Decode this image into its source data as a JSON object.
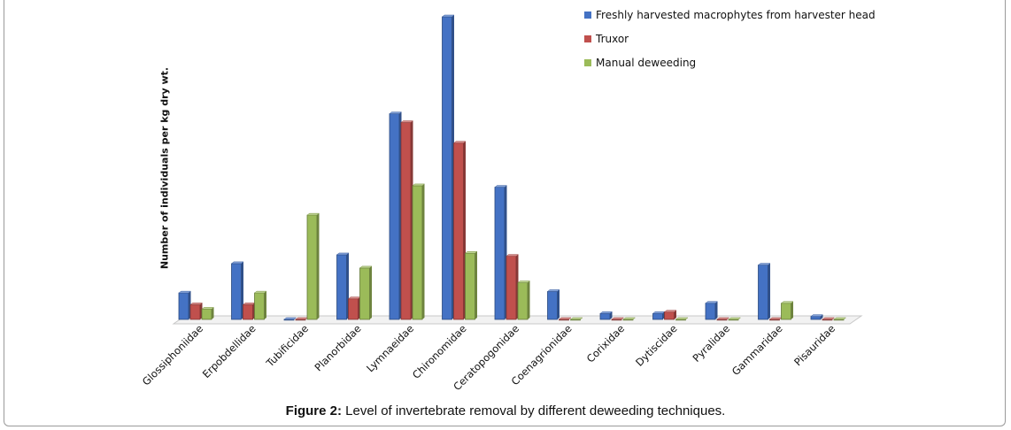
{
  "chart_data": {
    "type": "bar",
    "ylabel": "Number of individuals per kg dry wt.",
    "categories": [
      "Glossiphoniidae",
      "Erpobdellidae",
      "Tubificidae",
      "Planorbidae",
      "Lymnaeidae",
      "Chironomidae",
      "Ceratopogonidae",
      "Coenagrionidae",
      "Corixidae",
      "Dytiscidae",
      "Pyralidae",
      "Gammaridae",
      "Pisauridae"
    ],
    "series": [
      {
        "name": "Freshly harvested macrophytes from harvester head",
        "color": "#4472c4",
        "values": [
          9,
          19,
          0,
          22,
          70,
          103,
          45,
          9.5,
          2,
          2,
          5.5,
          18.5,
          1
        ]
      },
      {
        "name": "Truxor",
        "color": "#c0504d",
        "values": [
          5,
          5,
          0,
          7,
          67,
          60,
          21.5,
          0,
          0,
          2.5,
          0,
          0,
          0
        ]
      },
      {
        "name": "Manual deweeding",
        "color": "#9bbb59",
        "values": [
          3.5,
          9,
          35.5,
          17.5,
          45.5,
          22.5,
          12.5,
          0,
          0,
          0,
          0,
          5.5,
          0
        ]
      }
    ],
    "ylim": [
      0,
      105
    ],
    "grid": false,
    "legend": "top-right"
  },
  "caption": {
    "label": "Figure 2:",
    "text": " Level of invertebrate removal by different deweeding techniques."
  }
}
